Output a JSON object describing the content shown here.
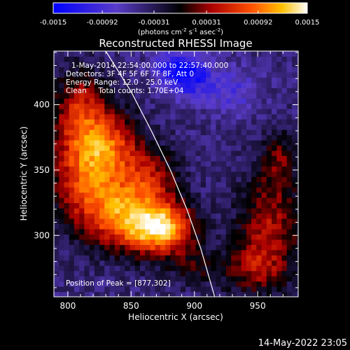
{
  "chart_data": {
    "type": "heatmap",
    "title": "Reconstructed RHESSI Image",
    "xlabel": "Heliocentric X (arcsec)",
    "ylabel": "Heliocentric Y (arcsec)",
    "xlim": [
      789,
      982
    ],
    "ylim": [
      253,
      441
    ],
    "xticks": [
      800,
      850,
      900,
      950
    ],
    "yticks": [
      300,
      350,
      400
    ],
    "colorbar": {
      "label_pre": "(photons cm",
      "label_e1": "-2",
      "label_mid1": " s",
      "label_e2": "-1",
      "label_mid2": " asec",
      "label_e3": "-2",
      "label_post": ")",
      "range": [
        -0.0015,
        0.0015
      ],
      "ticks": [
        "-0.0015",
        "-0.00092",
        "-0.00031",
        "0.00031",
        "0.00092",
        "0.0015"
      ]
    },
    "annotations": {
      "time": "1-May-2014 22:54:00.000 to 22:57:40.000",
      "detectors": "Detectors: 3F 4F 5F 6F 7F 8F, Att 0",
      "energy": "Energy Range: 12.0 - 25.0 keV",
      "clean": "Clean     Total counts: 1.70E+04",
      "peak": "Position of Peak = [877,302]"
    },
    "limb_curve": [
      [
        830,
        441
      ],
      [
        850,
        410
      ],
      [
        866,
        380
      ],
      [
        881,
        350
      ],
      [
        894,
        320
      ],
      [
        905,
        290
      ],
      [
        916,
        253
      ]
    ],
    "sources": [
      {
        "x": 875,
        "y": 305,
        "sx": 18,
        "sy": 14,
        "amp": 0.0015
      },
      {
        "x": 845,
        "y": 315,
        "sx": 22,
        "sy": 18,
        "amp": 0.0012
      },
      {
        "x": 815,
        "y": 345,
        "sx": 20,
        "sy": 25,
        "amp": 0.0011
      },
      {
        "x": 810,
        "y": 395,
        "sx": 16,
        "sy": 22,
        "amp": 0.0009
      },
      {
        "x": 835,
        "y": 370,
        "sx": 18,
        "sy": 18,
        "amp": 0.0008
      },
      {
        "x": 865,
        "y": 345,
        "sx": 16,
        "sy": 16,
        "amp": 0.0007
      },
      {
        "x": 960,
        "y": 310,
        "sx": 18,
        "sy": 30,
        "amp": 0.0008
      },
      {
        "x": 945,
        "y": 275,
        "sx": 18,
        "sy": 14,
        "amp": 0.0006
      },
      {
        "x": 968,
        "y": 360,
        "sx": 10,
        "sy": 14,
        "amp": 0.0005
      },
      {
        "x": 900,
        "y": 275,
        "sx": 14,
        "sy": 10,
        "amp": 0.0004
      },
      {
        "x": 895,
        "y": 420,
        "sx": 14,
        "sy": 10,
        "amp": -0.0008
      },
      {
        "x": 885,
        "y": 430,
        "sx": 12,
        "sy": 8,
        "amp": -0.0006
      },
      {
        "x": 930,
        "y": 410,
        "sx": 16,
        "sy": 14,
        "amp": -0.0004
      }
    ],
    "peak": [
      877,
      302
    ]
  },
  "footer": {
    "date": "14-May-2022 23:05"
  }
}
